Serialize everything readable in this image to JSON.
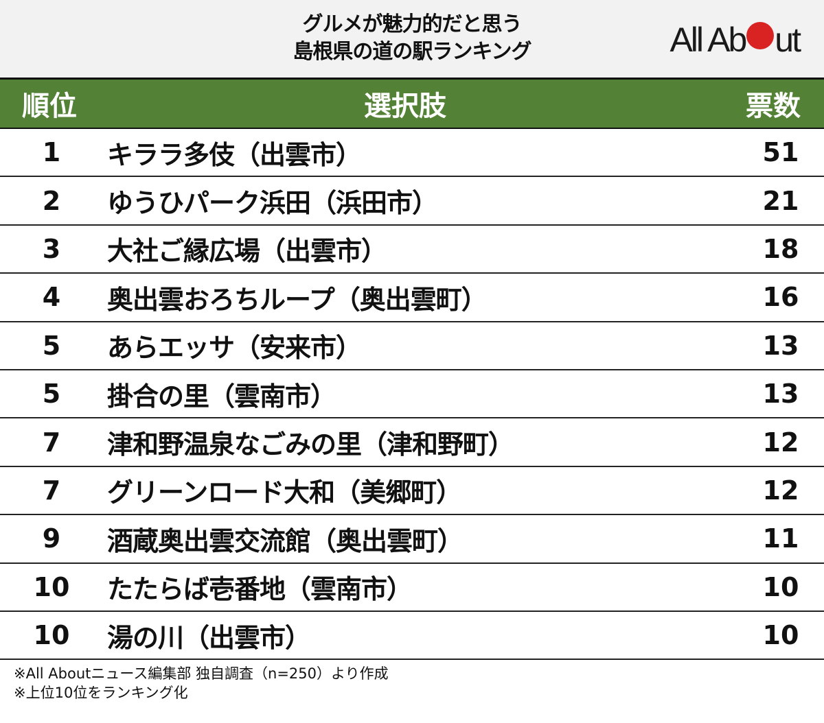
{
  "header": {
    "title_line1": "グルメが魅力的だと思う",
    "title_line2": "島根県の道の駅ランキング",
    "logo": {
      "text_before": "All Ab",
      "text_after": "ut",
      "dot_color": "#d92323"
    }
  },
  "table": {
    "columns": {
      "rank": "順位",
      "name": "選択肢",
      "votes": "票数"
    },
    "header_color": "#538135",
    "rows": [
      {
        "rank": "1",
        "name": "キララ多伎（出雲市）",
        "votes": "51"
      },
      {
        "rank": "2",
        "name": "ゆうひパーク浜田（浜田市）",
        "votes": "21"
      },
      {
        "rank": "3",
        "name": "大社ご縁広場（出雲市）",
        "votes": "18"
      },
      {
        "rank": "4",
        "name": "奥出雲おろちループ（奥出雲町）",
        "votes": "16"
      },
      {
        "rank": "5",
        "name": "あらエッサ（安来市）",
        "votes": "13"
      },
      {
        "rank": "5",
        "name": "掛合の里（雲南市）",
        "votes": "13"
      },
      {
        "rank": "7",
        "name": "津和野温泉なごみの里（津和野町）",
        "votes": "12"
      },
      {
        "rank": "7",
        "name": "グリーンロード大和（美郷町）",
        "votes": "12"
      },
      {
        "rank": "9",
        "name": "酒蔵奥出雲交流館（奥出雲町）",
        "votes": "11"
      },
      {
        "rank": "10",
        "name": "たたらば壱番地（雲南市）",
        "votes": "10"
      },
      {
        "rank": "10",
        "name": "湯の川（出雲市）",
        "votes": "10"
      }
    ]
  },
  "notes": [
    "※All Aboutニュース編集部 独自調査（n=250）より作成",
    "※上位10位をランキング化"
  ],
  "chart_data": {
    "type": "table",
    "title": "グルメが魅力的だと思う島根県の道の駅ランキング",
    "columns": [
      "順位",
      "選択肢",
      "票数"
    ],
    "categories": [
      "キララ多伎（出雲市）",
      "ゆうひパーク浜田（浜田市）",
      "大社ご縁広場（出雲市）",
      "奥出雲おろちループ（奥出雲町）",
      "あらエッサ（安来市）",
      "掛合の里（雲南市）",
      "津和野温泉なごみの里（津和野町）",
      "グリーンロード大和（美郷町）",
      "酒蔵奥出雲交流館（奥出雲町）",
      "たたらば壱番地（雲南市）",
      "湯の川（出雲市）"
    ],
    "ranks": [
      1,
      2,
      3,
      4,
      5,
      5,
      7,
      7,
      9,
      10,
      10
    ],
    "values": [
      51,
      21,
      18,
      16,
      13,
      13,
      12,
      12,
      11,
      10,
      10
    ],
    "annotations": [
      "※All Aboutニュース編集部 独自調査（n=250）より作成",
      "※上位10位をランキング化"
    ]
  }
}
